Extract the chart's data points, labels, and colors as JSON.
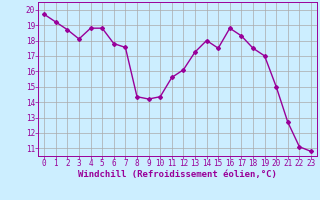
{
  "x": [
    0,
    1,
    2,
    3,
    4,
    5,
    6,
    7,
    8,
    9,
    10,
    11,
    12,
    13,
    14,
    15,
    16,
    17,
    18,
    19,
    20,
    21,
    22,
    23
  ],
  "y": [
    19.7,
    19.2,
    18.7,
    18.1,
    18.8,
    18.8,
    17.8,
    17.55,
    14.35,
    14.2,
    14.35,
    15.6,
    16.1,
    17.25,
    18.0,
    17.5,
    18.8,
    18.3,
    17.5,
    17.0,
    15.0,
    12.7,
    11.1,
    10.8
  ],
  "line_color": "#990099",
  "marker": "D",
  "marker_size": 2.0,
  "bg_color": "#cceeff",
  "grid_color": "#aaaaaa",
  "xlabel": "Windchill (Refroidissement éolien,°C)",
  "xlim": [
    -0.5,
    23.5
  ],
  "ylim": [
    10.5,
    20.5
  ],
  "yticks": [
    11,
    12,
    13,
    14,
    15,
    16,
    17,
    18,
    19,
    20
  ],
  "xticks": [
    0,
    1,
    2,
    3,
    4,
    5,
    6,
    7,
    8,
    9,
    10,
    11,
    12,
    13,
    14,
    15,
    16,
    17,
    18,
    19,
    20,
    21,
    22,
    23
  ],
  "tick_color": "#990099",
  "label_color": "#990099",
  "label_fontsize": 6.5,
  "tick_fontsize": 5.5,
  "linewidth": 1.0
}
